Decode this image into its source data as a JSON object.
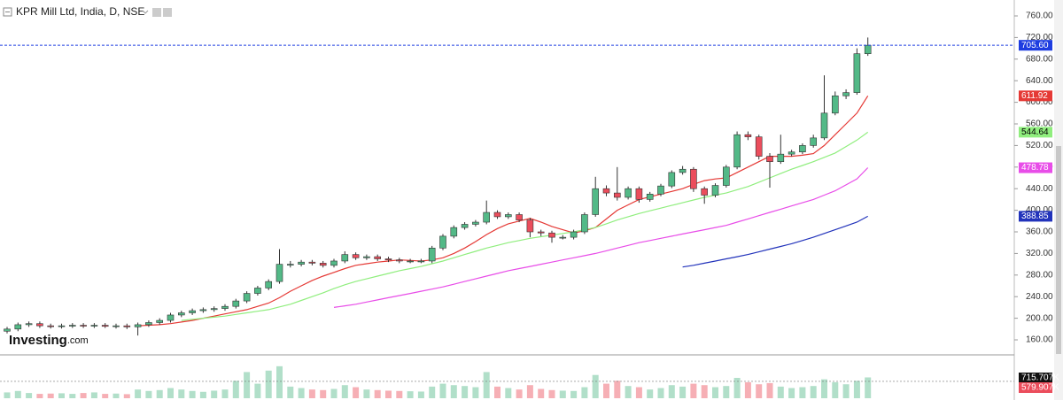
{
  "header": {
    "title": "KPR Mill Ltd, India, D, NSE"
  },
  "logo": {
    "brand": "Investing",
    "suffix": ".com"
  },
  "chart_data": {
    "type": "candlestick",
    "up_color": "#53b987",
    "down_color": "#eb4d5c",
    "open": [
      176,
      180,
      188,
      190,
      186,
      185,
      186,
      187,
      186,
      187,
      185,
      186,
      184,
      188,
      192,
      196,
      206,
      210,
      214,
      216,
      218,
      222,
      232,
      246,
      256,
      268,
      300,
      300,
      304,
      302,
      298,
      306,
      318,
      312,
      314,
      310,
      308,
      306,
      306,
      306,
      330,
      352,
      368,
      374,
      378,
      396,
      388,
      392,
      382,
      360,
      358,
      350,
      350,
      360,
      392,
      440,
      432,
      424,
      440,
      420,
      430,
      445,
      470,
      476,
      440,
      428,
      446,
      480,
      540,
      536,
      500,
      490,
      504,
      508,
      520,
      534,
      580,
      612,
      618,
      690
    ],
    "high": [
      184,
      192,
      194,
      194,
      190,
      190,
      191,
      191,
      191,
      191,
      190,
      190,
      192,
      196,
      200,
      210,
      214,
      218,
      220,
      222,
      226,
      236,
      250,
      260,
      272,
      328,
      306,
      308,
      308,
      306,
      310,
      324,
      322,
      318,
      318,
      314,
      312,
      310,
      310,
      334,
      356,
      372,
      378,
      382,
      418,
      400,
      396,
      396,
      386,
      364,
      362,
      354,
      364,
      396,
      462,
      446,
      480,
      444,
      444,
      434,
      449,
      474,
      482,
      480,
      444,
      450,
      484,
      546,
      546,
      540,
      506,
      540,
      512,
      524,
      540,
      650,
      620,
      624,
      700,
      720
    ],
    "low": [
      172,
      176,
      184,
      182,
      181,
      181,
      182,
      182,
      182,
      182,
      181,
      180,
      168,
      184,
      188,
      192,
      202,
      206,
      210,
      212,
      214,
      218,
      228,
      242,
      252,
      264,
      294,
      296,
      298,
      294,
      294,
      302,
      308,
      308,
      306,
      304,
      302,
      302,
      302,
      302,
      326,
      348,
      364,
      370,
      374,
      384,
      384,
      378,
      350,
      352,
      340,
      346,
      346,
      356,
      388,
      426,
      418,
      420,
      414,
      416,
      426,
      441,
      466,
      434,
      412,
      424,
      442,
      476,
      530,
      494,
      442,
      486,
      500,
      504,
      516,
      530,
      576,
      606,
      614,
      686
    ],
    "close": [
      180,
      188,
      190,
      186,
      185,
      186,
      187,
      186,
      187,
      185,
      186,
      184,
      188,
      192,
      196,
      206,
      210,
      214,
      216,
      218,
      222,
      232,
      246,
      256,
      268,
      300,
      300,
      304,
      302,
      298,
      306,
      318,
      312,
      314,
      310,
      308,
      306,
      306,
      306,
      330,
      352,
      368,
      374,
      378,
      396,
      388,
      392,
      382,
      360,
      358,
      350,
      350,
      360,
      392,
      440,
      432,
      424,
      440,
      420,
      430,
      445,
      470,
      476,
      440,
      428,
      446,
      480,
      540,
      536,
      500,
      490,
      504,
      508,
      520,
      534,
      580,
      612,
      618,
      690,
      705.6
    ],
    "last_price_label": "705.60",
    "last_price_color": "#1e3de0",
    "ylim": [
      133.8,
      781.3
    ],
    "yticks": [
      {
        "value": 160,
        "label": "160.00"
      },
      {
        "value": 200,
        "label": "200.00"
      },
      {
        "value": 240,
        "label": "240.00"
      },
      {
        "value": 280,
        "label": "280.00"
      },
      {
        "value": 320,
        "label": "320.00"
      },
      {
        "value": 360,
        "label": "360.00"
      },
      {
        "value": 400,
        "label": "400.00"
      },
      {
        "value": 440,
        "label": "440.00"
      },
      {
        "value": 480,
        "label": "480.00"
      },
      {
        "value": 520,
        "label": "520.00"
      },
      {
        "value": 560,
        "label": "560.00"
      },
      {
        "value": 600,
        "label": "600.00"
      },
      {
        "value": 640,
        "label": "640.00"
      },
      {
        "value": 680,
        "label": "680.00"
      },
      {
        "value": 720,
        "label": "720.00"
      },
      {
        "value": 760,
        "label": "760.00"
      }
    ],
    "grid": false,
    "moving_averages": [
      {
        "color": "#e53935",
        "label_text_color": "#ffffff",
        "last_label": "611.92",
        "values": [
          null,
          null,
          null,
          null,
          null,
          null,
          null,
          null,
          null,
          null,
          null,
          null,
          186,
          187,
          188,
          190,
          193,
          196,
          200,
          204,
          208,
          212,
          216,
          222,
          228,
          238,
          250,
          260,
          270,
          278,
          285,
          292,
          298,
          301,
          304,
          306,
          308,
          307,
          306,
          308,
          312,
          320,
          330,
          342,
          355,
          366,
          375,
          380,
          385,
          378,
          370,
          364,
          358,
          362,
          368,
          384,
          400,
          410,
          420,
          425,
          430,
          435,
          440,
          448,
          455,
          458,
          460,
          470,
          480,
          490,
          500,
          500,
          500,
          502,
          505,
          520,
          540,
          560,
          580,
          611.92
        ]
      },
      {
        "color": "#90ee7e",
        "label_text_color": "#000000",
        "last_label": "544.64",
        "values": [
          null,
          null,
          null,
          null,
          null,
          null,
          null,
          null,
          null,
          null,
          null,
          null,
          null,
          null,
          null,
          null,
          196,
          198,
          200,
          202,
          204,
          207,
          210,
          213,
          216,
          221,
          226,
          233,
          240,
          247,
          255,
          262,
          268,
          273,
          278,
          283,
          288,
          292,
          296,
          301,
          306,
          312,
          318,
          324,
          330,
          335,
          340,
          344,
          348,
          351,
          354,
          357,
          360,
          364,
          368,
          375,
          382,
          388,
          394,
          399,
          404,
          409,
          414,
          419,
          424,
          428,
          432,
          438,
          444,
          452,
          460,
          468,
          476,
          483,
          490,
          498,
          506,
          518,
          530,
          544.64
        ]
      },
      {
        "color": "#e84de8",
        "label_text_color": "#ffffff",
        "last_label": "478.78",
        "values": [
          null,
          null,
          null,
          null,
          null,
          null,
          null,
          null,
          null,
          null,
          null,
          null,
          null,
          null,
          null,
          null,
          null,
          null,
          null,
          null,
          null,
          null,
          null,
          null,
          null,
          null,
          null,
          null,
          null,
          null,
          220,
          223,
          226,
          230,
          234,
          238,
          242,
          246,
          250,
          254,
          258,
          263,
          268,
          273,
          278,
          283,
          288,
          292,
          296,
          300,
          304,
          308,
          312,
          316,
          320,
          325,
          330,
          335,
          340,
          344,
          348,
          352,
          356,
          360,
          364,
          368,
          372,
          378,
          384,
          390,
          396,
          402,
          408,
          414,
          420,
          428,
          436,
          447,
          458,
          478.78
        ]
      },
      {
        "color": "#2233bb",
        "label_text_color": "#ffffff",
        "last_label": "388.85",
        "values": [
          null,
          null,
          null,
          null,
          null,
          null,
          null,
          null,
          null,
          null,
          null,
          null,
          null,
          null,
          null,
          null,
          null,
          null,
          null,
          null,
          null,
          null,
          null,
          null,
          null,
          null,
          null,
          null,
          null,
          null,
          null,
          null,
          null,
          null,
          null,
          null,
          null,
          null,
          null,
          null,
          null,
          null,
          null,
          null,
          null,
          null,
          null,
          null,
          null,
          null,
          null,
          null,
          null,
          null,
          null,
          null,
          null,
          null,
          null,
          null,
          null,
          null,
          295,
          298,
          302,
          306,
          310,
          314,
          318,
          323,
          328,
          333,
          338,
          344,
          350,
          357,
          364,
          371,
          378,
          388.85
        ]
      }
    ],
    "volume": {
      "values": [
        200000,
        250000,
        180000,
        150000,
        160000,
        170000,
        150000,
        180000,
        200000,
        150000,
        160000,
        140000,
        300000,
        250000,
        280000,
        350000,
        300000,
        250000,
        220000,
        260000,
        300000,
        600000,
        900000,
        500000,
        950000,
        1100000,
        400000,
        350000,
        300000,
        280000,
        320000,
        450000,
        380000,
        300000,
        280000,
        260000,
        250000,
        240000,
        230000,
        400000,
        500000,
        450000,
        420000,
        380000,
        900000,
        400000,
        350000,
        300000,
        450000,
        320000,
        280000,
        260000,
        250000,
        380000,
        800000,
        500000,
        600000,
        420000,
        380000,
        300000,
        350000,
        450000,
        400000,
        500000,
        450000,
        380000,
        420000,
        700000,
        550000,
        480000,
        520000,
        400000,
        350000,
        380000,
        420000,
        650000,
        550000,
        480000,
        600000,
        715707
      ],
      "last_label": "715.707K",
      "average": {
        "value": 579907,
        "label": "579.907K"
      },
      "vlim": [
        0,
        1400000
      ]
    }
  }
}
